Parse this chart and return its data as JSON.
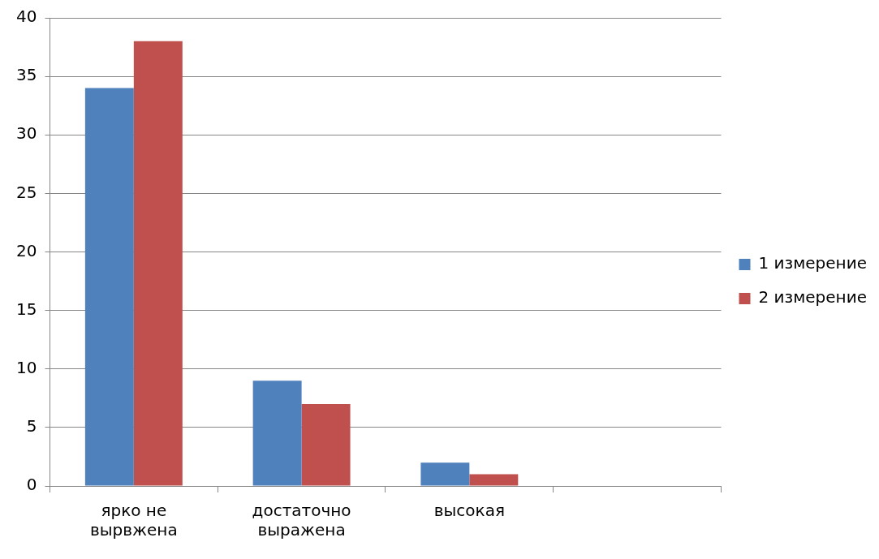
{
  "chart_data": {
    "type": "bar",
    "categories": [
      "ярко не вырвжена",
      "достаточно выражена",
      "высокая",
      null
    ],
    "series": [
      {
        "name": "1 измерение",
        "color": "#4f81bd",
        "values": [
          34,
          9,
          2,
          null
        ]
      },
      {
        "name": "2 измерение",
        "color": "#c0504d",
        "values": [
          38,
          7,
          1,
          null
        ]
      }
    ],
    "ylim": [
      0,
      40
    ],
    "yticks": [
      0,
      5,
      10,
      15,
      20,
      25,
      30,
      35,
      40
    ],
    "grid": "y",
    "legend": "right"
  }
}
